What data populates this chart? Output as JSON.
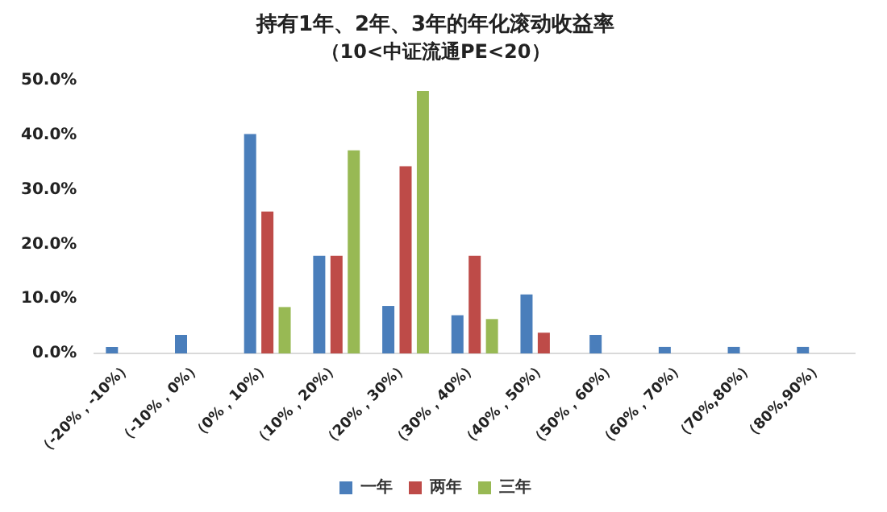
{
  "chart_data": {
    "type": "bar",
    "title": "持有1年、2年、3年的年化滚动收益率",
    "subtitle": "（10<中证流通PE<20）",
    "categories": [
      "（-20%，-10%）",
      "（-10%，0%）",
      "（0%，10%）",
      "（10%，20%）",
      "（20%，30%）",
      "（30%，40%）",
      "（40%，50%）",
      "（50%，60%）",
      "（60%，70%）",
      "（70%,80%）",
      "（80%,90%）"
    ],
    "series": [
      {
        "name": "一年",
        "color": "#4a7ebb",
        "values": [
          1.2,
          3.4,
          40.2,
          17.9,
          8.7,
          7.0,
          10.8,
          3.4,
          1.2,
          1.2,
          1.2
        ]
      },
      {
        "name": "两年",
        "color": "#be4b48",
        "values": [
          null,
          null,
          26.0,
          17.9,
          34.3,
          17.9,
          3.8,
          null,
          null,
          null,
          null
        ]
      },
      {
        "name": "三年",
        "color": "#98b954",
        "values": [
          null,
          null,
          8.5,
          37.2,
          48.1,
          6.3,
          null,
          null,
          null,
          null,
          null
        ]
      }
    ],
    "ylim": [
      0,
      50
    ],
    "yticks": [
      {
        "value": 0,
        "label": "0.0%"
      },
      {
        "value": 10,
        "label": "10.0%"
      },
      {
        "value": 20,
        "label": "20.0%"
      },
      {
        "value": 30,
        "label": "30.0%"
      },
      {
        "value": 40,
        "label": "40.0%"
      },
      {
        "value": 50,
        "label": "50.0%"
      }
    ],
    "grid": false,
    "legend": "bottom"
  }
}
